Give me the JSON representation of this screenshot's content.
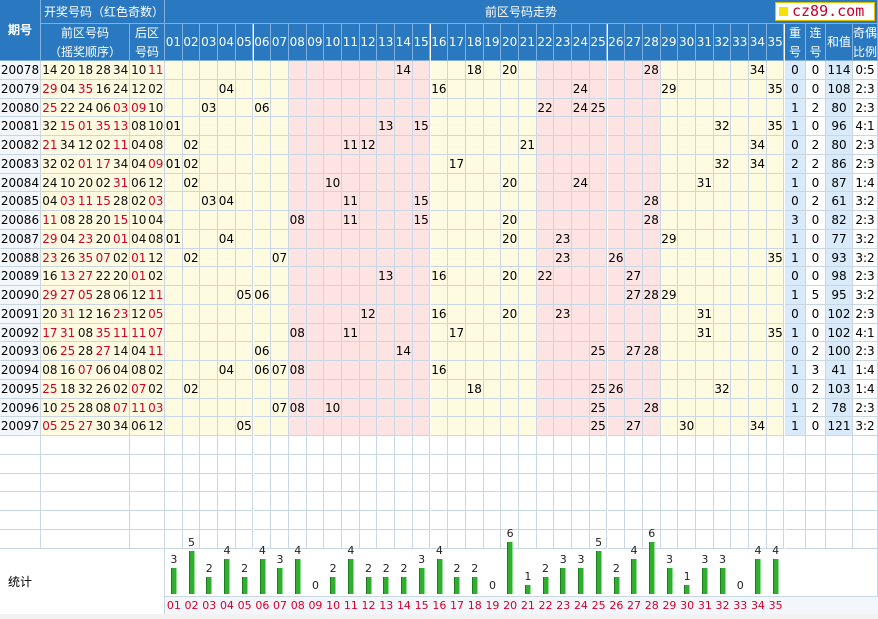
{
  "header": {
    "period": "期号",
    "group_title": "开奖号码（红色奇数）",
    "front_title": "前区号码",
    "front_sub": "（摇奖顺序）",
    "back_title1": "后区",
    "back_title2": "号码",
    "trend_title": "前区号码走势",
    "repeat1": "重",
    "repeat2": "号",
    "consec1": "连",
    "consec2": "号",
    "sum": "和值",
    "ratio1": "奇偶",
    "ratio2": "比例",
    "logo": "cz89.com"
  },
  "colors": {
    "odd": "#d4002a",
    "even": "#111111",
    "header": "#2a79c0",
    "bar": "#2fae2f"
  },
  "numbers": [
    "01",
    "02",
    "03",
    "04",
    "05",
    "06",
    "07",
    "08",
    "09",
    "10",
    "11",
    "12",
    "13",
    "14",
    "15",
    "16",
    "17",
    "18",
    "19",
    "20",
    "21",
    "22",
    "23",
    "24",
    "25",
    "26",
    "27",
    "28",
    "29",
    "30",
    "31",
    "32",
    "33",
    "34",
    "35"
  ],
  "stats_label": "统计",
  "chart_data": {
    "type": "bar",
    "title": "",
    "xlabel": "",
    "ylabel": "",
    "categories": [
      "01",
      "02",
      "03",
      "04",
      "05",
      "06",
      "07",
      "08",
      "09",
      "10",
      "11",
      "12",
      "13",
      "14",
      "15",
      "16",
      "17",
      "18",
      "19",
      "20",
      "21",
      "22",
      "23",
      "24",
      "25",
      "26",
      "27",
      "28",
      "29",
      "30",
      "31",
      "32",
      "33",
      "34",
      "35"
    ],
    "values": [
      3,
      5,
      2,
      4,
      2,
      4,
      3,
      4,
      0,
      2,
      4,
      2,
      2,
      2,
      3,
      4,
      2,
      2,
      0,
      6,
      1,
      2,
      3,
      3,
      5,
      2,
      4,
      6,
      3,
      1,
      3,
      3,
      0,
      4,
      4
    ]
  },
  "rows": [
    {
      "period": "20078",
      "front": [
        "14",
        "20",
        "18",
        "28",
        "34"
      ],
      "back": [
        "10",
        "11"
      ],
      "repeat": "0",
      "consec": "0",
      "sum": "114",
      "ratio": "0:5"
    },
    {
      "period": "20079",
      "front": [
        "29",
        "04",
        "35",
        "16",
        "24"
      ],
      "back": [
        "12",
        "02"
      ],
      "repeat": "0",
      "consec": "0",
      "sum": "108",
      "ratio": "2:3"
    },
    {
      "period": "20080",
      "front": [
        "25",
        "22",
        "24",
        "06",
        "03"
      ],
      "back": [
        "09",
        "10"
      ],
      "repeat": "1",
      "consec": "2",
      "sum": "80",
      "ratio": "2:3"
    },
    {
      "period": "20081",
      "front": [
        "32",
        "15",
        "01",
        "35",
        "13"
      ],
      "back": [
        "08",
        "10"
      ],
      "repeat": "1",
      "consec": "0",
      "sum": "96",
      "ratio": "4:1"
    },
    {
      "period": "20082",
      "front": [
        "21",
        "34",
        "12",
        "02",
        "11"
      ],
      "back": [
        "04",
        "08"
      ],
      "repeat": "0",
      "consec": "2",
      "sum": "80",
      "ratio": "2:3"
    },
    {
      "period": "20083",
      "front": [
        "32",
        "02",
        "01",
        "17",
        "34"
      ],
      "back": [
        "04",
        "09"
      ],
      "repeat": "2",
      "consec": "2",
      "sum": "86",
      "ratio": "2:3"
    },
    {
      "period": "20084",
      "front": [
        "24",
        "10",
        "20",
        "02",
        "31"
      ],
      "back": [
        "06",
        "12"
      ],
      "repeat": "1",
      "consec": "0",
      "sum": "87",
      "ratio": "1:4"
    },
    {
      "period": "20085",
      "front": [
        "04",
        "03",
        "11",
        "15",
        "28"
      ],
      "back": [
        "02",
        "03"
      ],
      "repeat": "0",
      "consec": "2",
      "sum": "61",
      "ratio": "3:2"
    },
    {
      "period": "20086",
      "front": [
        "11",
        "08",
        "28",
        "20",
        "15"
      ],
      "back": [
        "10",
        "04"
      ],
      "repeat": "3",
      "consec": "0",
      "sum": "82",
      "ratio": "2:3"
    },
    {
      "period": "20087",
      "front": [
        "29",
        "04",
        "23",
        "20",
        "01"
      ],
      "back": [
        "04",
        "08"
      ],
      "repeat": "1",
      "consec": "0",
      "sum": "77",
      "ratio": "3:2"
    },
    {
      "period": "20088",
      "front": [
        "23",
        "26",
        "35",
        "07",
        "02"
      ],
      "back": [
        "01",
        "12"
      ],
      "repeat": "1",
      "consec": "0",
      "sum": "93",
      "ratio": "3:2"
    },
    {
      "period": "20089",
      "front": [
        "16",
        "13",
        "27",
        "22",
        "20"
      ],
      "back": [
        "01",
        "02"
      ],
      "repeat": "0",
      "consec": "0",
      "sum": "98",
      "ratio": "2:3"
    },
    {
      "period": "20090",
      "front": [
        "29",
        "27",
        "05",
        "28",
        "06"
      ],
      "back": [
        "12",
        "11"
      ],
      "repeat": "1",
      "consec": "5",
      "sum": "95",
      "ratio": "3:2"
    },
    {
      "period": "20091",
      "front": [
        "20",
        "31",
        "12",
        "16",
        "23"
      ],
      "back": [
        "12",
        "05"
      ],
      "repeat": "0",
      "consec": "0",
      "sum": "102",
      "ratio": "2:3"
    },
    {
      "period": "20092",
      "front": [
        "17",
        "31",
        "08",
        "35",
        "11"
      ],
      "back": [
        "11",
        "07"
      ],
      "repeat": "1",
      "consec": "0",
      "sum": "102",
      "ratio": "4:1"
    },
    {
      "period": "20093",
      "front": [
        "06",
        "25",
        "28",
        "27",
        "14"
      ],
      "back": [
        "04",
        "11"
      ],
      "repeat": "0",
      "consec": "2",
      "sum": "100",
      "ratio": "2:3"
    },
    {
      "period": "20094",
      "front": [
        "08",
        "16",
        "07",
        "06",
        "04"
      ],
      "back": [
        "08",
        "02"
      ],
      "repeat": "1",
      "consec": "3",
      "sum": "41",
      "ratio": "1:4"
    },
    {
      "period": "20095",
      "front": [
        "25",
        "18",
        "32",
        "26",
        "02"
      ],
      "back": [
        "07",
        "02"
      ],
      "repeat": "0",
      "consec": "2",
      "sum": "103",
      "ratio": "1:4"
    },
    {
      "period": "20096",
      "front": [
        "10",
        "25",
        "28",
        "08",
        "07"
      ],
      "back": [
        "11",
        "03"
      ],
      "repeat": "1",
      "consec": "2",
      "sum": "78",
      "ratio": "2:3"
    },
    {
      "period": "20097",
      "front": [
        "05",
        "25",
        "27",
        "30",
        "34"
      ],
      "back": [
        "06",
        "12"
      ],
      "repeat": "1",
      "consec": "0",
      "sum": "121",
      "ratio": "3:2"
    }
  ]
}
